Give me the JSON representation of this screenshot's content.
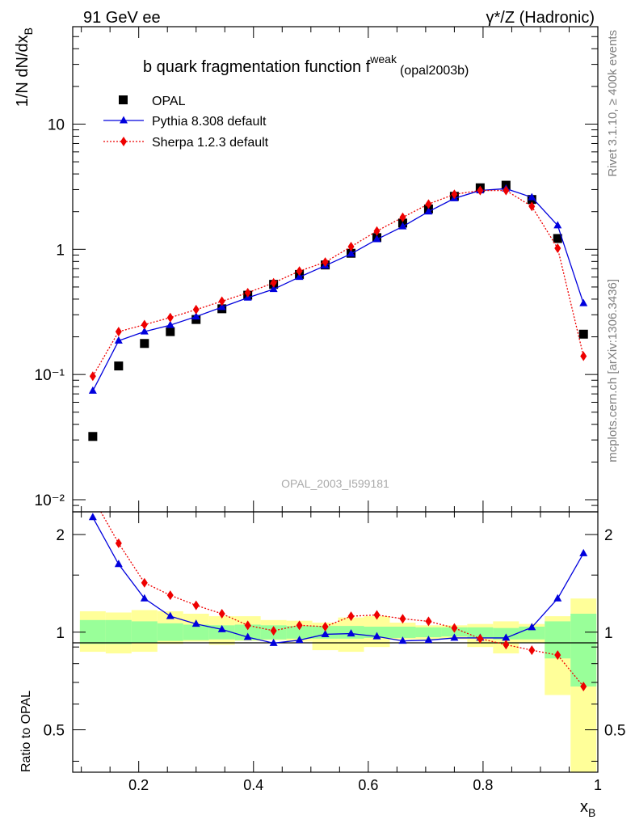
{
  "header": {
    "left": "91 GeV ee",
    "right": "γ*/Z (Hadronic)"
  },
  "title": {
    "main": "b quark fragmentation function f",
    "superscript": "weak",
    "tag": "(opal2003b)"
  },
  "side_labels": {
    "top": "Rivet 3.1.10, ≥ 400k events",
    "bottom": "mcplots.cern.ch [arXiv:1306.3436]"
  },
  "watermark": "OPAL_2003_I599181",
  "chart_data": [
    {
      "type": "scatter",
      "panel": "main",
      "ylabel": "1/N dN/dx",
      "ylabel_sub": "B",
      "yscale": "log",
      "ylim": [
        0.008,
        60
      ],
      "xlim": [
        0.085,
        1.0
      ],
      "ytick_labels": [
        "10⁻²",
        "10⁻¹",
        "1",
        "10"
      ],
      "x": [
        0.12,
        0.165,
        0.21,
        0.255,
        0.3,
        0.345,
        0.39,
        0.435,
        0.48,
        0.525,
        0.57,
        0.615,
        0.66,
        0.705,
        0.75,
        0.795,
        0.84,
        0.885,
        0.93,
        0.975
      ],
      "series": [
        {
          "name": "OPAL",
          "color": "#000000",
          "marker": "square",
          "values": [
            0.032,
            0.117,
            0.177,
            0.22,
            0.275,
            0.335,
            0.43,
            0.525,
            0.63,
            0.75,
            0.93,
            1.24,
            1.62,
            2.1,
            2.65,
            3.1,
            3.25,
            2.5,
            1.22,
            0.21
          ]
        },
        {
          "name": "Pythia 8.308 default",
          "color": "#0000dd",
          "marker": "triangle",
          "line": "solid",
          "values": [
            0.074,
            0.186,
            0.22,
            0.248,
            0.29,
            0.345,
            0.41,
            0.48,
            0.6,
            0.74,
            0.92,
            1.2,
            1.52,
            2.0,
            2.55,
            2.95,
            3.05,
            2.6,
            1.55,
            0.37
          ]
        },
        {
          "name": "Sherpa 1.2.3 default",
          "color": "#ee0000",
          "marker": "diamond",
          "line": "dotted",
          "values": [
            0.097,
            0.22,
            0.25,
            0.285,
            0.33,
            0.385,
            0.45,
            0.54,
            0.67,
            0.79,
            1.05,
            1.4,
            1.8,
            2.3,
            2.75,
            2.95,
            2.95,
            2.2,
            1.02,
            0.14
          ]
        }
      ]
    },
    {
      "type": "line",
      "panel": "ratio",
      "ylabel": "Ratio to OPAL",
      "xlabel": "x",
      "xlabel_sub": "B",
      "yscale": "log",
      "ylim": [
        0.37,
        2.35
      ],
      "xlim": [
        0.085,
        1.0
      ],
      "ytick_values": [
        0.5,
        1,
        2
      ],
      "ytick_labels": [
        "0.5",
        "1",
        "2"
      ],
      "xtick_values": [
        0.2,
        0.4,
        0.6,
        0.8,
        1.0
      ],
      "xtick_labels": [
        "0.2",
        "0.4",
        "0.6",
        "0.8",
        "1"
      ],
      "band_edges": [
        0.0975,
        0.1425,
        0.1875,
        0.2325,
        0.2775,
        0.3225,
        0.3675,
        0.4125,
        0.4575,
        0.5025,
        0.5475,
        0.5925,
        0.6375,
        0.6825,
        0.7275,
        0.7725,
        0.8175,
        0.8625,
        0.9075,
        0.9525,
        0.9975
      ],
      "stat_band": {
        "color": "#99ff99",
        "lower": [
          0.92,
          0.92,
          0.925,
          0.94,
          0.945,
          0.95,
          0.945,
          0.95,
          0.955,
          0.955,
          0.955,
          0.96,
          0.96,
          0.965,
          0.97,
          0.96,
          0.95,
          0.95,
          0.83,
          0.68
        ],
        "upper": [
          1.09,
          1.09,
          1.08,
          1.065,
          1.055,
          1.05,
          1.055,
          1.05,
          1.045,
          1.045,
          1.045,
          1.04,
          1.04,
          1.035,
          1.035,
          1.035,
          1.03,
          1.04,
          1.08,
          1.14
        ]
      },
      "syst_band": {
        "color": "#ffff99",
        "lower": [
          0.87,
          0.86,
          0.87,
          0.92,
          0.935,
          0.915,
          0.94,
          0.945,
          0.935,
          0.88,
          0.87,
          0.9,
          0.95,
          0.95,
          0.95,
          0.9,
          0.86,
          0.93,
          0.64,
          0.35
        ],
        "upper": [
          1.16,
          1.15,
          1.17,
          1.16,
          1.14,
          1.12,
          1.12,
          1.09,
          1.085,
          1.07,
          1.11,
          1.12,
          1.07,
          1.05,
          1.05,
          1.06,
          1.08,
          1.06,
          1.12,
          1.27
        ]
      },
      "x": [
        0.12,
        0.165,
        0.21,
        0.255,
        0.3,
        0.345,
        0.39,
        0.435,
        0.48,
        0.525,
        0.57,
        0.615,
        0.66,
        0.705,
        0.75,
        0.795,
        0.84,
        0.885,
        0.93,
        0.975
      ],
      "series": [
        {
          "name": "Pythia 8.308 default",
          "color": "#0000dd",
          "marker": "triangle",
          "line": "solid",
          "values": [
            2.26,
            1.62,
            1.27,
            1.12,
            1.06,
            1.02,
            0.965,
            0.925,
            0.945,
            0.985,
            0.99,
            0.97,
            0.94,
            0.945,
            0.96,
            0.96,
            0.96,
            1.035,
            1.27,
            1.75
          ]
        },
        {
          "name": "Sherpa 1.2.3 default",
          "color": "#ee0000",
          "marker": "diamond",
          "line": "dotted",
          "values": [
            2.6,
            1.88,
            1.42,
            1.3,
            1.21,
            1.14,
            1.05,
            1.01,
            1.05,
            1.04,
            1.12,
            1.13,
            1.1,
            1.08,
            1.03,
            0.955,
            0.915,
            0.88,
            0.85,
            0.68
          ]
        }
      ]
    }
  ]
}
